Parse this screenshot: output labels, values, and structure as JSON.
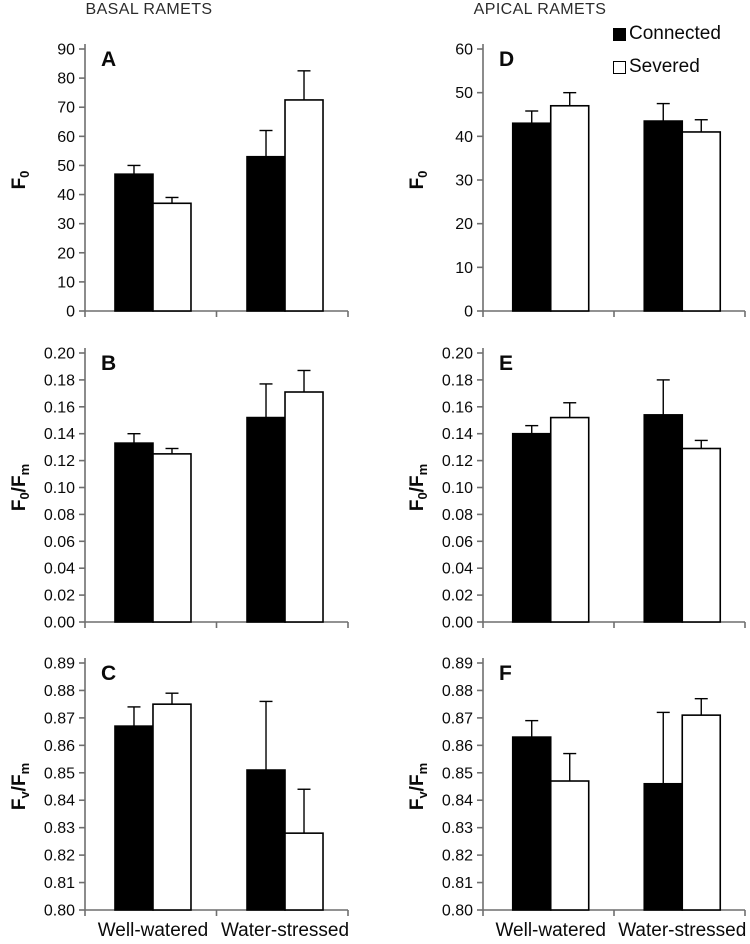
{
  "figure": {
    "columns": [
      {
        "title": "BASAL RAMETS"
      },
      {
        "title": "APICAL RAMETS"
      }
    ],
    "legend": {
      "position": "top-right-of-panel-D",
      "series": [
        {
          "label": "Connected",
          "fill": "#000000"
        },
        {
          "label": "Severed",
          "fill": "#ffffff"
        }
      ]
    }
  },
  "chart_data": [
    {
      "type": "bar",
      "panel": "A",
      "column": "basal",
      "row": 1,
      "ylabel": "F0",
      "ylabel_parts": [
        [
          "F",
          0
        ],
        [
          "0",
          1
        ]
      ],
      "ylim": [
        0,
        90
      ],
      "ytick_step": 10,
      "ytick_decimals": 0,
      "categories": [
        "Well-watered",
        "Water-stressed"
      ],
      "show_x_labels": false,
      "grid": false,
      "series": [
        {
          "name": "Connected",
          "fill": "#000000",
          "values": [
            47,
            53
          ],
          "errors_plus": [
            3,
            9
          ]
        },
        {
          "name": "Severed",
          "fill": "#ffffff",
          "values": [
            37,
            72.5
          ],
          "errors_plus": [
            2,
            10
          ]
        }
      ]
    },
    {
      "type": "bar",
      "panel": "B",
      "column": "basal",
      "row": 2,
      "ylabel": "F0/Fm",
      "ylabel_parts": [
        [
          "F",
          0
        ],
        [
          "0",
          1
        ],
        [
          "/F",
          0
        ],
        [
          "m",
          1
        ]
      ],
      "ylim": [
        0.0,
        0.2
      ],
      "ytick_step": 0.02,
      "ytick_decimals": 2,
      "categories": [
        "Well-watered",
        "Water-stressed"
      ],
      "show_x_labels": false,
      "grid": false,
      "series": [
        {
          "name": "Connected",
          "fill": "#000000",
          "values": [
            0.133,
            0.152
          ],
          "errors_plus": [
            0.007,
            0.025
          ]
        },
        {
          "name": "Severed",
          "fill": "#ffffff",
          "values": [
            0.125,
            0.171
          ],
          "errors_plus": [
            0.004,
            0.016
          ]
        }
      ]
    },
    {
      "type": "bar",
      "panel": "C",
      "column": "basal",
      "row": 3,
      "ylabel": "Fv/Fm",
      "ylabel_parts": [
        [
          "F",
          0
        ],
        [
          "v",
          1
        ],
        [
          "/F",
          0
        ],
        [
          "m",
          1
        ]
      ],
      "ylim": [
        0.8,
        0.89
      ],
      "ytick_step": 0.01,
      "ytick_decimals": 2,
      "categories": [
        "Well-watered",
        "Water-stressed"
      ],
      "show_x_labels": true,
      "grid": false,
      "series": [
        {
          "name": "Connected",
          "fill": "#000000",
          "values": [
            0.867,
            0.851
          ],
          "errors_plus": [
            0.007,
            0.025
          ]
        },
        {
          "name": "Severed",
          "fill": "#ffffff",
          "values": [
            0.875,
            0.828
          ],
          "errors_plus": [
            0.004,
            0.016
          ]
        }
      ]
    },
    {
      "type": "bar",
      "panel": "D",
      "column": "apical",
      "row": 1,
      "ylabel": "F0",
      "ylabel_parts": [
        [
          "F",
          0
        ],
        [
          "0",
          1
        ]
      ],
      "ylim": [
        0,
        60
      ],
      "ytick_step": 10,
      "ytick_decimals": 0,
      "categories": [
        "Well-watered",
        "Water-stressed"
      ],
      "show_x_labels": false,
      "grid": false,
      "series": [
        {
          "name": "Connected",
          "fill": "#000000",
          "values": [
            43,
            43.5
          ],
          "errors_plus": [
            2.8,
            4
          ]
        },
        {
          "name": "Severed",
          "fill": "#ffffff",
          "values": [
            47,
            41
          ],
          "errors_plus": [
            3,
            2.8
          ]
        }
      ]
    },
    {
      "type": "bar",
      "panel": "E",
      "column": "apical",
      "row": 2,
      "ylabel": "F0/Fm",
      "ylabel_parts": [
        [
          "F",
          0
        ],
        [
          "0",
          1
        ],
        [
          "/F",
          0
        ],
        [
          "m",
          1
        ]
      ],
      "ylim": [
        0.0,
        0.2
      ],
      "ytick_step": 0.02,
      "ytick_decimals": 2,
      "categories": [
        "Well-watered",
        "Water-stressed"
      ],
      "show_x_labels": false,
      "grid": false,
      "series": [
        {
          "name": "Connected",
          "fill": "#000000",
          "values": [
            0.14,
            0.154
          ],
          "errors_plus": [
            0.006,
            0.026
          ]
        },
        {
          "name": "Severed",
          "fill": "#ffffff",
          "values": [
            0.152,
            0.129
          ],
          "errors_plus": [
            0.011,
            0.006
          ]
        }
      ]
    },
    {
      "type": "bar",
      "panel": "F",
      "column": "apical",
      "row": 3,
      "ylabel": "Fv/Fm",
      "ylabel_parts": [
        [
          "F",
          0
        ],
        [
          "v",
          1
        ],
        [
          "/F",
          0
        ],
        [
          "m",
          1
        ]
      ],
      "ylim": [
        0.8,
        0.89
      ],
      "ytick_step": 0.01,
      "ytick_decimals": 2,
      "categories": [
        "Well-watered",
        "Water-stressed"
      ],
      "show_x_labels": true,
      "grid": false,
      "series": [
        {
          "name": "Connected",
          "fill": "#000000",
          "values": [
            0.863,
            0.846
          ],
          "errors_plus": [
            0.006,
            0.026
          ]
        },
        {
          "name": "Severed",
          "fill": "#ffffff",
          "values": [
            0.847,
            0.871
          ],
          "errors_plus": [
            0.01,
            0.006
          ]
        }
      ]
    }
  ]
}
